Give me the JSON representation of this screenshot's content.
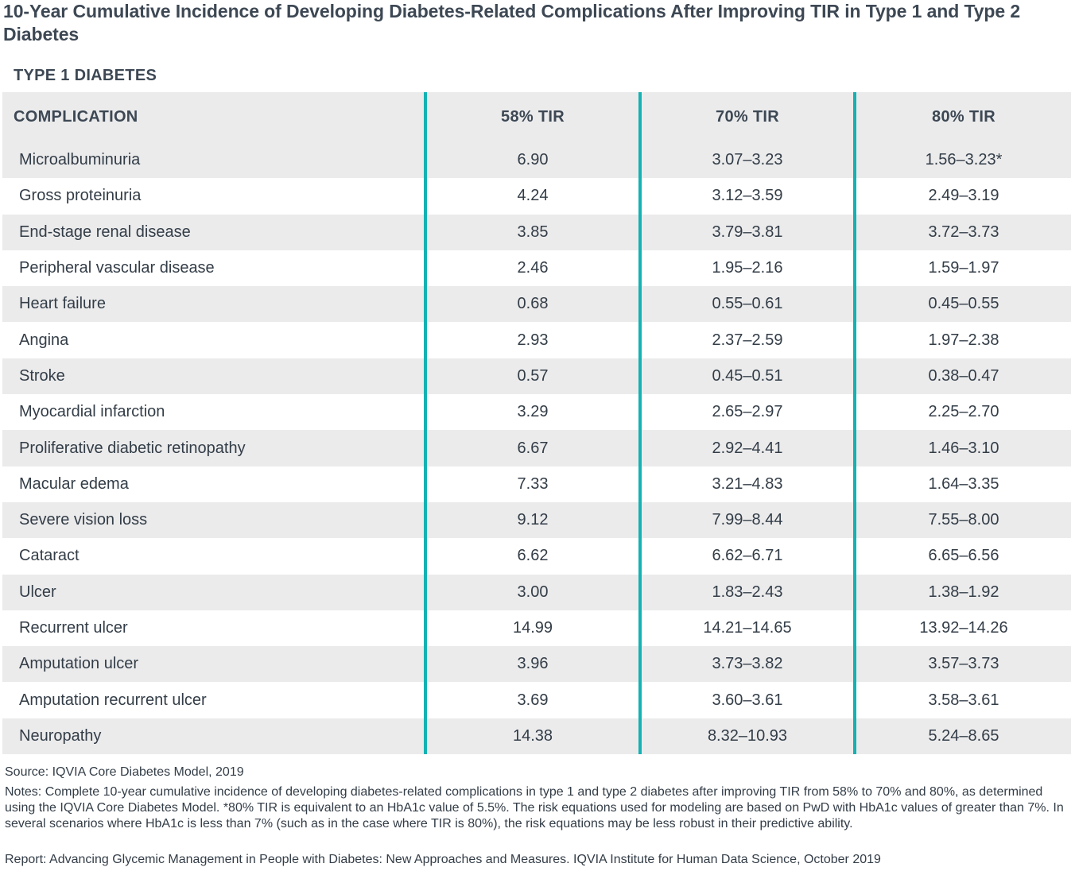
{
  "title": "10-Year Cumulative Incidence of Developing Diabetes-Related Complications After Improving TIR in Type 1 and Type 2 Diabetes",
  "section_label": "TYPE 1 DIABETES",
  "table": {
    "headers": [
      "COMPLICATION",
      "58% TIR",
      "70% TIR",
      "80% TIR"
    ],
    "rows": [
      [
        "Microalbuminuria",
        "6.90",
        "3.07–3.23",
        "1.56–3.23*"
      ],
      [
        "Gross proteinuria",
        "4.24",
        "3.12–3.59",
        "2.49–3.19"
      ],
      [
        "End-stage renal disease",
        "3.85",
        "3.79–3.81",
        "3.72–3.73"
      ],
      [
        "Peripheral vascular disease",
        "2.46",
        "1.95–2.16",
        "1.59–1.97"
      ],
      [
        "Heart failure",
        "0.68",
        "0.55–0.61",
        "0.45–0.55"
      ],
      [
        "Angina",
        "2.93",
        "2.37–2.59",
        "1.97–2.38"
      ],
      [
        "Stroke",
        "0.57",
        "0.45–0.51",
        "0.38–0.47"
      ],
      [
        "Myocardial infarction",
        "3.29",
        "2.65–2.97",
        "2.25–2.70"
      ],
      [
        "Proliferative diabetic retinopathy",
        "6.67",
        "2.92–4.41",
        "1.46–3.10"
      ],
      [
        "Macular edema",
        "7.33",
        "3.21–4.83",
        "1.64–3.35"
      ],
      [
        "Severe vision loss",
        "9.12",
        "7.99–8.44",
        "7.55–8.00"
      ],
      [
        "Cataract",
        "6.62",
        "6.62–6.71",
        "6.65–6.56"
      ],
      [
        "Ulcer",
        "3.00",
        "1.83–2.43",
        "1.38–1.92"
      ],
      [
        "Recurrent ulcer",
        "14.99",
        "14.21–14.65",
        "13.92–14.26"
      ],
      [
        "Amputation ulcer",
        "3.96",
        "3.73–3.82",
        "3.57–3.73"
      ],
      [
        "Amputation recurrent ulcer",
        "3.69",
        "3.60–3.61",
        "3.58–3.61"
      ],
      [
        "Neuropathy",
        "14.38",
        "8.32–10.93",
        "5.24–8.65"
      ]
    ]
  },
  "footer": {
    "source": "Source: IQVIA Core Diabetes Model, 2019",
    "notes": "Notes: Complete 10-year cumulative incidence of developing diabetes-related complications in type 1 and type 2 diabetes after improving TIR from 58% to 70% and 80%, as determined using the IQVIA Core Diabetes Model. *80% TIR is equivalent to an HbA1c value of 5.5%. The risk equations used for modeling are based on PwD with HbA1c values of greater than 7%. In several scenarios where HbA1c is less than 7% (such as in the case where TIR is 80%), the risk equations may be less robust in their predictive ability.",
    "report": "Report: Advancing Glycemic Management in People with Diabetes: New Approaches and Measures. IQVIA Institute for Human Data Science, October 2019"
  },
  "colors": {
    "accent_divider": "#14b2b3",
    "row_shade": "#ebebec",
    "text": "#333d47"
  }
}
